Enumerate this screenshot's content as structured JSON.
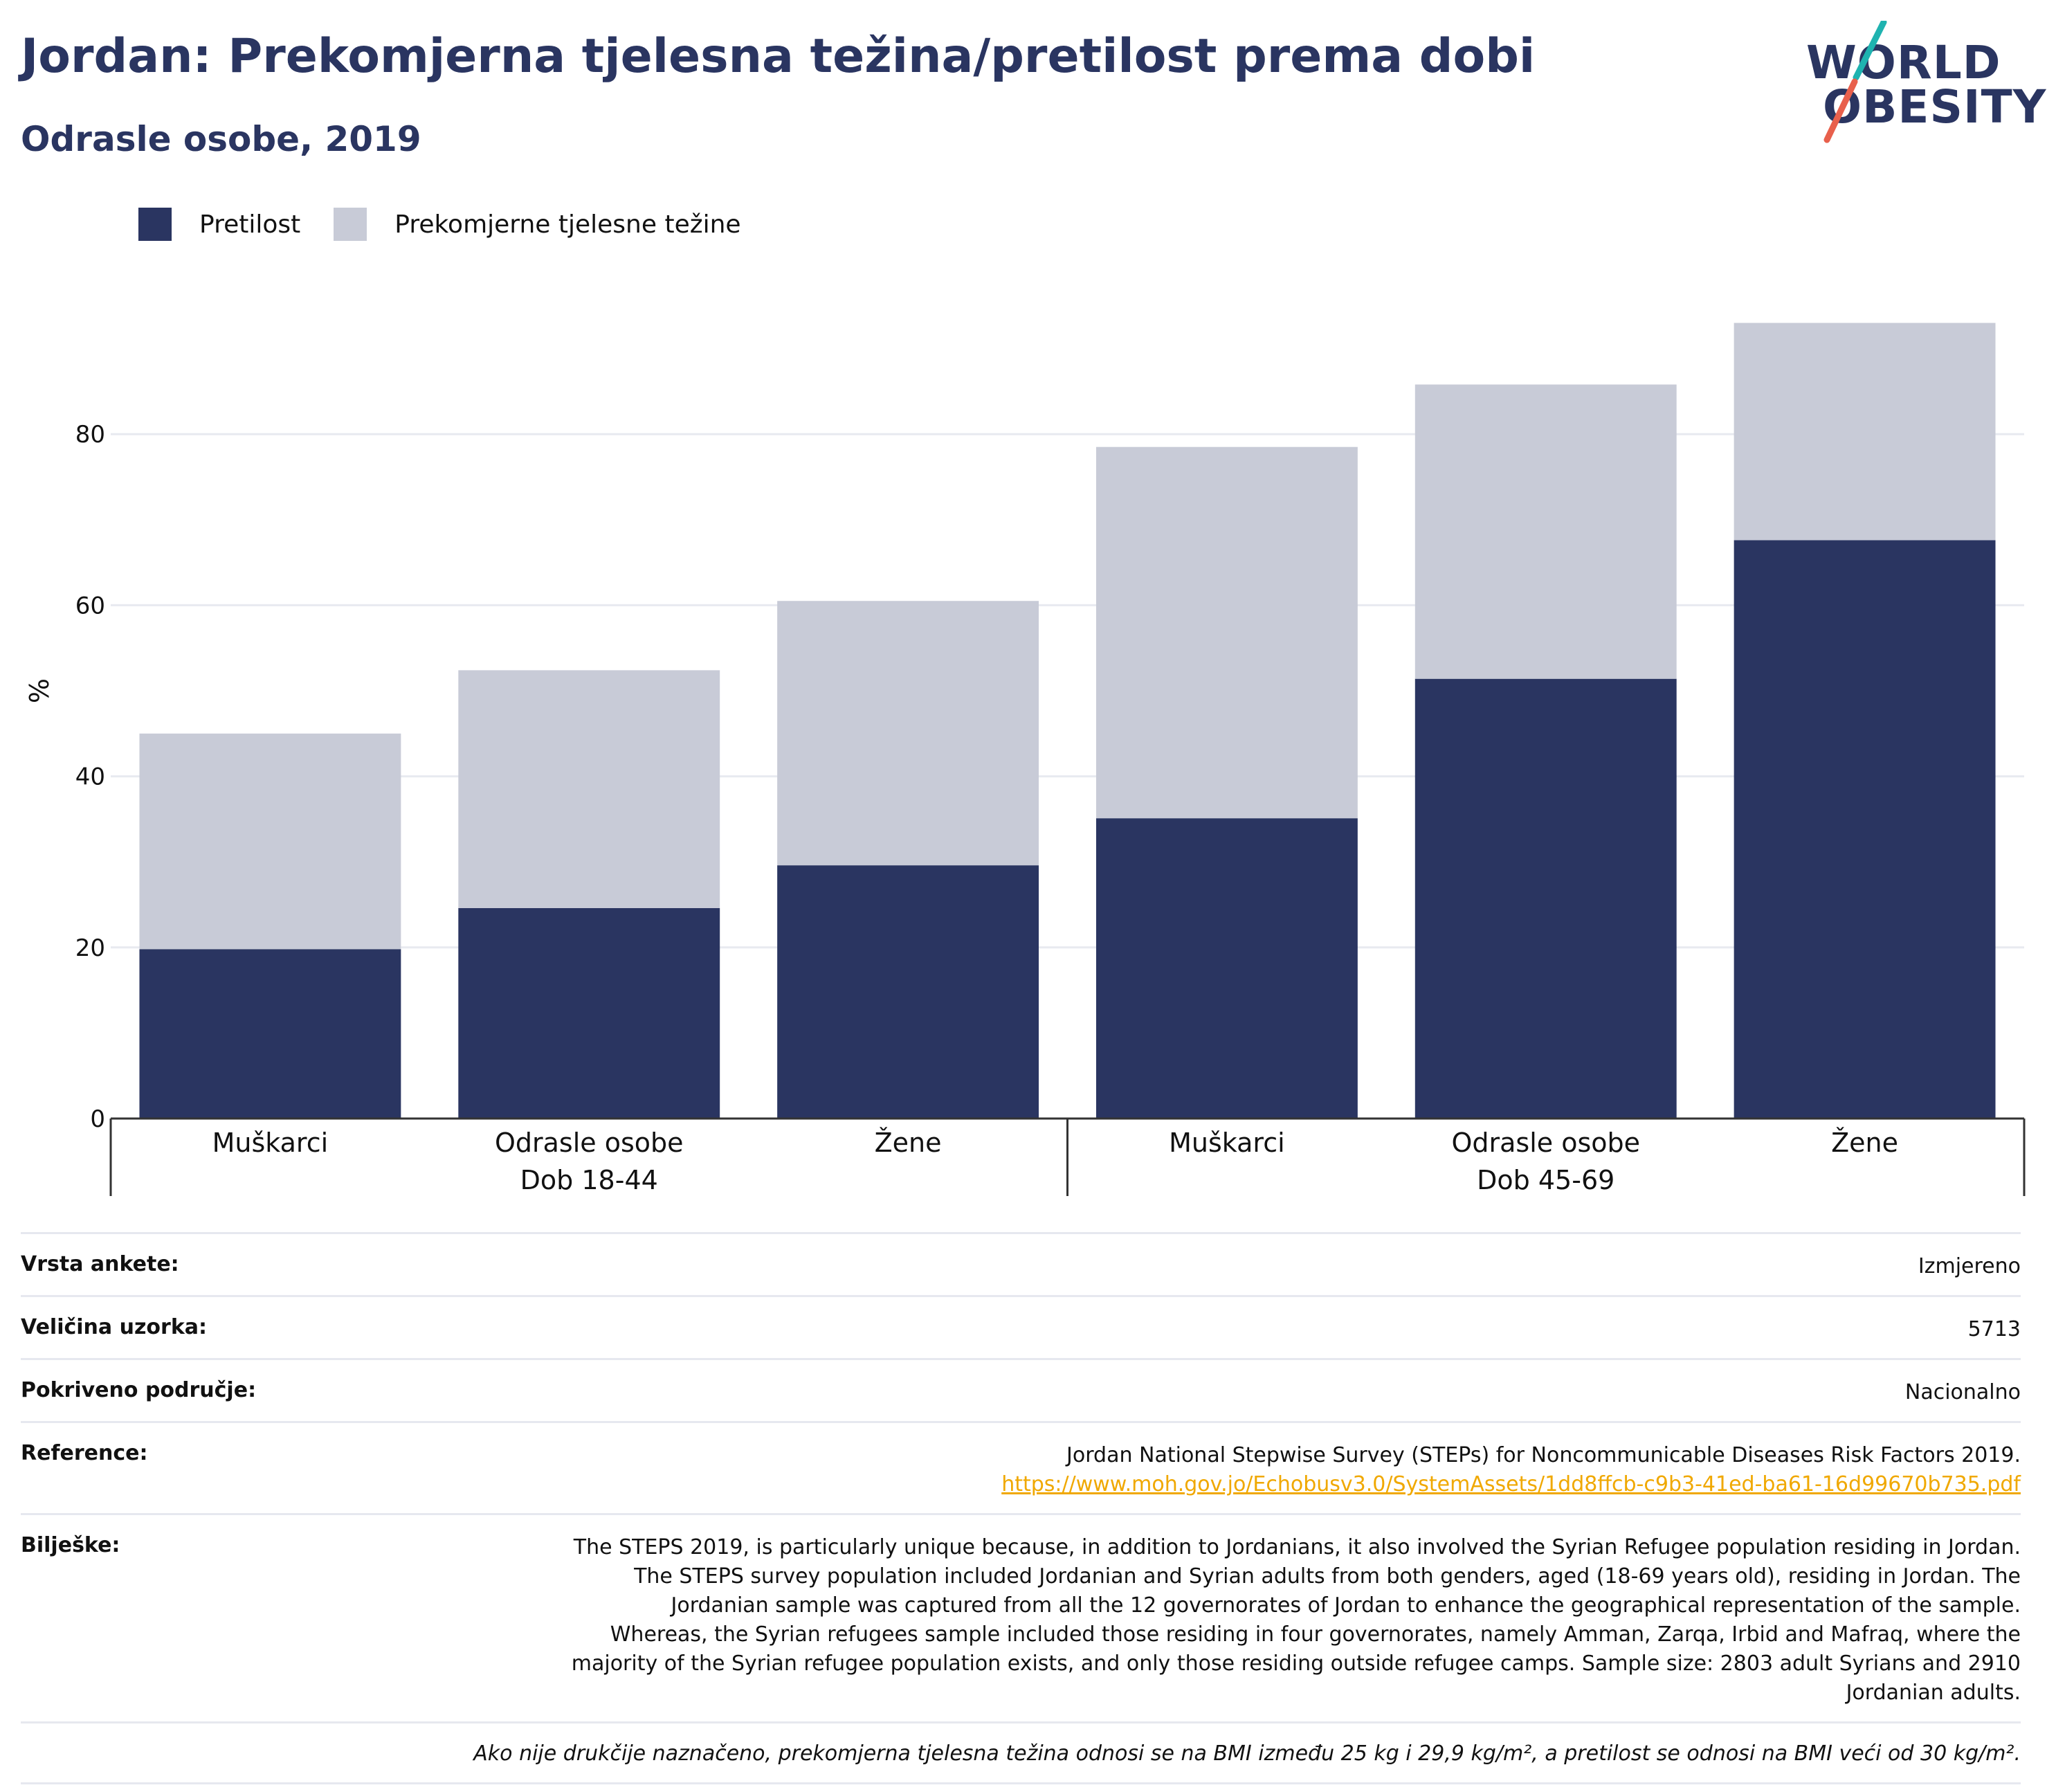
{
  "header": {
    "title": "Jordan: Prekomjerna tjelesna težina/pretilost prema dobi",
    "subtitle": "Odrasle osobe, 2019"
  },
  "logo": {
    "line1": "WORLD",
    "line2": "OBESITY",
    "accent_colors": [
      "#1fb3b0",
      "#e8604c"
    ]
  },
  "legend": [
    {
      "label": "Pretilost",
      "color": "#2a3561"
    },
    {
      "label": "Prekomjerne tjelesne težine",
      "color": "#c8cbd7"
    }
  ],
  "chart_data": {
    "type": "bar",
    "stacked": true,
    "ylabel": "%",
    "ylim": [
      0,
      100
    ],
    "yticks": [
      0,
      20,
      40,
      60,
      80
    ],
    "grid": true,
    "categories": [
      "Muškarci",
      "Odrasle osobe",
      "Žene",
      "Muškarci",
      "Odrasle osobe",
      "Žene"
    ],
    "groups": [
      {
        "label": "Dob 18-44",
        "span": [
          0,
          2
        ]
      },
      {
        "label": "Dob 45-69",
        "span": [
          3,
          5
        ]
      }
    ],
    "series": [
      {
        "name": "Pretilost",
        "color": "#2a3561",
        "values": [
          19.8,
          24.6,
          29.6,
          35.1,
          51.4,
          67.6
        ]
      },
      {
        "name": "Prekomjerne tjelesne težine",
        "color": "#c8cbd7",
        "values": [
          25.2,
          27.8,
          30.9,
          43.4,
          34.4,
          25.4
        ]
      }
    ]
  },
  "info": [
    {
      "key": "Vrsta ankete:",
      "value": "Izmjereno"
    },
    {
      "key": "Veličina uzorka:",
      "value": "5713"
    },
    {
      "key": "Pokriveno područje:",
      "value": "Nacionalno"
    }
  ],
  "reference": {
    "key": "Reference:",
    "text": "Jordan National Stepwise Survey (STEPs) for Noncommunicable Diseases Risk Factors 2019.",
    "link": "https://www.moh.gov.jo/Echobusv3.0/SystemAssets/1dd8ffcb-c9b3-41ed-ba61-16d99670b735.pdf"
  },
  "notes": {
    "key": "Bilješke:",
    "text": "The STEPS 2019, is particularly unique because, in addition to Jordanians, it also involved the Syrian Refugee population residing in Jordan. The STEPS survey population included Jordanian and Syrian adults from both genders, aged (18-69 years old), residing in Jordan. The Jordanian sample was captured from all the 12 governorates of Jordan to enhance the geographical representation of the sample. Whereas, the Syrian refugees sample included those residing in four governorates, namely Amman, Zarqa, Irbid and Mafraq, where the majority of the Syrian refugee population exists, and only those residing outside refugee camps. Sample size: 2803 adult Syrians and 2910 Jordanian adults."
  },
  "footnote": "Ako nije drukčije naznačeno, prekomjerna tjelesna težina odnosi se na BMI između 25 kg i 29,9 kg/m², a pretilost se odnosi na BMI veći od 30 kg/m²."
}
